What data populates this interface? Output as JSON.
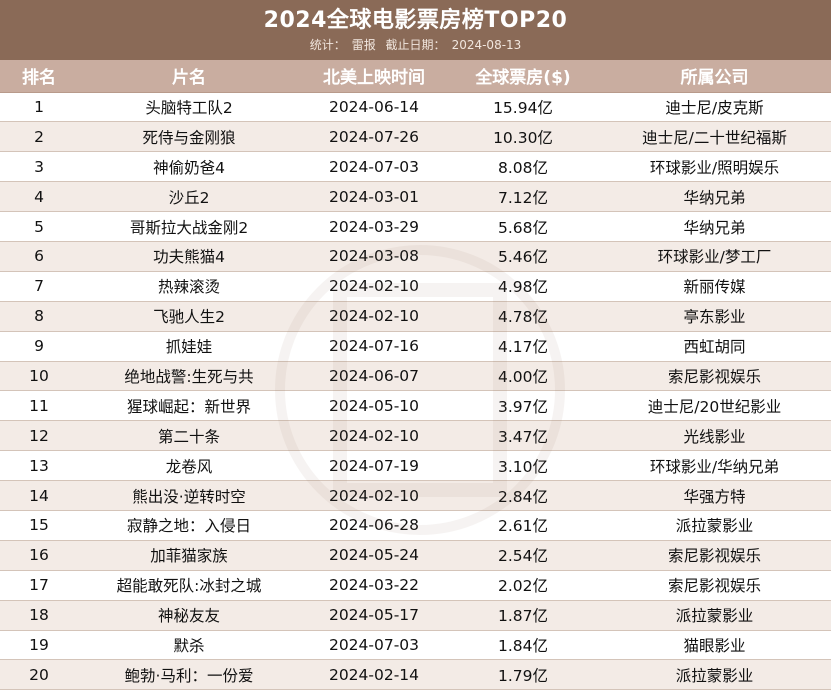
{
  "header": {
    "title": "2024全球电影票房榜TOP20",
    "stats_label": "统计：",
    "stats_source": "雷报",
    "date_label": "截止日期：",
    "date_value": "2024-08-13"
  },
  "table": {
    "columns": [
      "排名",
      "片名",
      "北美上映时间",
      "全球票房($)",
      "所属公司"
    ],
    "rows": [
      [
        "1",
        "头脑特工队2",
        "2024-06-14",
        "15.94亿",
        "迪士尼/皮克斯"
      ],
      [
        "2",
        "死侍与金刚狼",
        "2024-07-26",
        "10.30亿",
        "迪士尼/二十世纪福斯"
      ],
      [
        "3",
        "神偷奶爸4",
        "2024-07-03",
        "8.08亿",
        "环球影业/照明娱乐"
      ],
      [
        "4",
        "沙丘2",
        "2024-03-01",
        "7.12亿",
        "华纳兄弟"
      ],
      [
        "5",
        "哥斯拉大战金刚2",
        "2024-03-29",
        "5.68亿",
        "华纳兄弟"
      ],
      [
        "6",
        "功夫熊猫4",
        "2024-03-08",
        "5.46亿",
        "环球影业/梦工厂"
      ],
      [
        "7",
        "热辣滚烫",
        "2024-02-10",
        "4.98亿",
        "新丽传媒"
      ],
      [
        "8",
        "飞驰人生2",
        "2024-02-10",
        "4.78亿",
        "亭东影业"
      ],
      [
        "9",
        "抓娃娃",
        "2024-07-16",
        "4.17亿",
        "西虹胡同"
      ],
      [
        "10",
        "绝地战警:生死与共",
        "2024-06-07",
        "4.00亿",
        "索尼影视娱乐"
      ],
      [
        "11",
        "猩球崛起：新世界",
        "2024-05-10",
        "3.97亿",
        "迪士尼/20世纪影业"
      ],
      [
        "12",
        "第二十条",
        "2024-02-10",
        "3.47亿",
        "光线影业"
      ],
      [
        "13",
        "龙卷风",
        "2024-07-19",
        "3.10亿",
        "环球影业/华纳兄弟"
      ],
      [
        "14",
        "熊出没·逆转时空",
        "2024-02-10",
        "2.84亿",
        "华强方特"
      ],
      [
        "15",
        "寂静之地：入侵日",
        "2024-06-28",
        "2.61亿",
        "派拉蒙影业"
      ],
      [
        "16",
        "加菲猫家族",
        "2024-05-24",
        "2.54亿",
        "索尼影视娱乐"
      ],
      [
        "17",
        "超能敢死队:冰封之城",
        "2024-03-22",
        "2.02亿",
        "索尼影视娱乐"
      ],
      [
        "18",
        "神秘友友",
        "2024-05-17",
        "1.87亿",
        "派拉蒙影业"
      ],
      [
        "19",
        "默杀",
        "2024-07-03",
        "1.84亿",
        "猫眼影业"
      ],
      [
        "20",
        "鲍勃·马利：一份爱",
        "2024-02-14",
        "1.79亿",
        "派拉蒙影业"
      ]
    ]
  },
  "colors": {
    "header_bg": "#8a6a57",
    "column_header_bg": "#c9ada0",
    "stripe": "#f3ebe6",
    "text": "#111111"
  }
}
